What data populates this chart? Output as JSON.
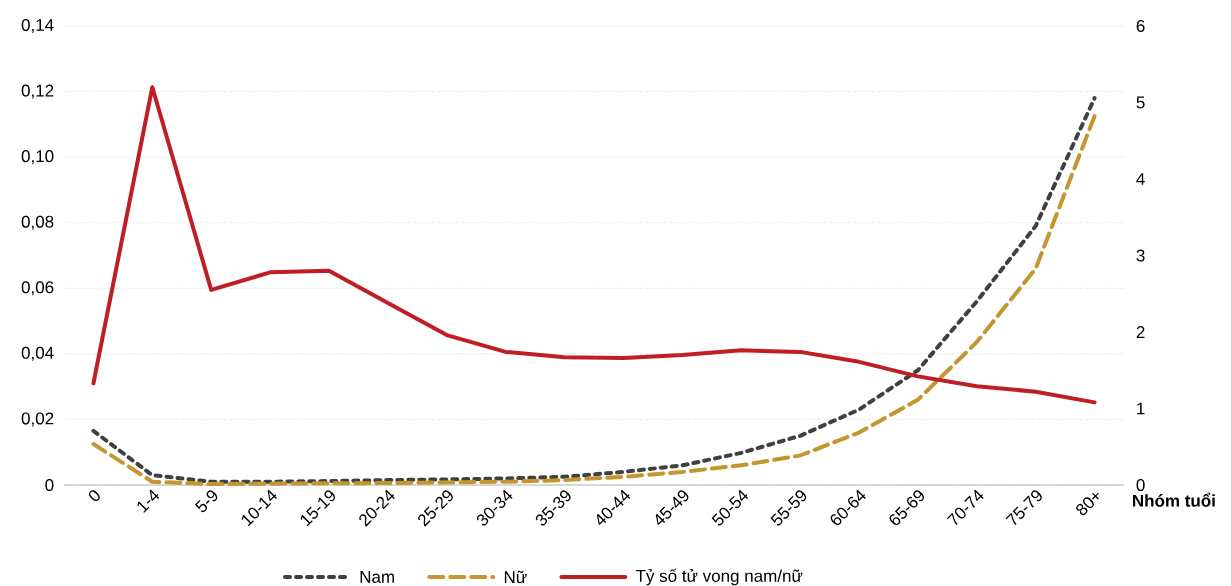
{
  "chart_data": {
    "type": "line",
    "categories": [
      "0",
      "1-4",
      "5-9",
      "10-14",
      "15-19",
      "20-24",
      "25-29",
      "30-34",
      "35-39",
      "40-44",
      "45-49",
      "50-54",
      "55-59",
      "60-64",
      "65-69",
      "70-74",
      "75-79",
      "80+"
    ],
    "xlabel": "Nhóm tuổi",
    "series": [
      {
        "name": "Nam",
        "color": "#404040",
        "line_style": "dotted",
        "values": [
          0.0165,
          0.003,
          0.001,
          0.001,
          0.0012,
          0.0015,
          0.0017,
          0.002,
          0.0025,
          0.004,
          0.006,
          0.0098,
          0.015,
          0.023,
          0.035,
          0.056,
          0.079,
          0.118
        ]
      },
      {
        "name": "Nữ",
        "color": "#c4962f",
        "line_style": "dashed",
        "values": [
          0.0125,
          0.001,
          0.0003,
          0.0004,
          0.0005,
          0.0006,
          0.0008,
          0.001,
          0.0015,
          0.0025,
          0.004,
          0.006,
          0.009,
          0.016,
          0.026,
          0.0436,
          0.066,
          0.1125
        ]
      },
      {
        "name": "Tỷ số tử vong nam/nữ",
        "color": "#be1e24",
        "line_style": "solid",
        "axis": "y2",
        "values": [
          1.33,
          5.2,
          2.55,
          2.78,
          2.8,
          2.38,
          1.96,
          1.74,
          1.67,
          1.66,
          1.7,
          1.76,
          1.74,
          1.61,
          1.42,
          1.29,
          1.22,
          1.08
        ]
      }
    ],
    "ylim": [
      0,
      0.14
    ],
    "yticks": [
      0,
      {
        "value": 0.02,
        "label": "0,02"
      },
      {
        "value": 0.04,
        "label": "0,04"
      },
      {
        "value": 0.06,
        "label": "0,06"
      },
      {
        "value": 0.08,
        "label": "0,08"
      },
      {
        "value": 0.1,
        "label": "0,10"
      },
      {
        "value": 0.12,
        "label": "0,12"
      },
      {
        "value": 0.14,
        "label": "0,14"
      }
    ],
    "y2lim": [
      0,
      6
    ],
    "y2ticks": [
      0,
      1,
      2,
      3,
      4,
      5,
      6
    ],
    "grid": "y",
    "legend": "bottom"
  }
}
